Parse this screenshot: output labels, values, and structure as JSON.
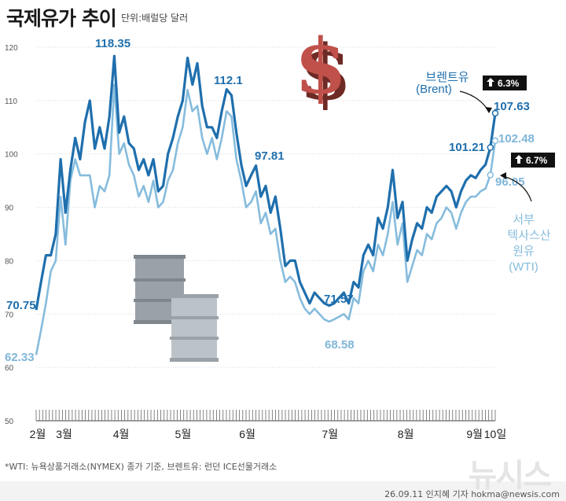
{
  "header": {
    "title": "국제유가 추이",
    "unit": "단위:배럴당 달러"
  },
  "footer": {
    "note": "*WTI: 뉴욕상품거래소(NYMEX) 종가 기준, 브렌트유: 런던 ICE선물거래소",
    "credit": "26.09.11 인지혜 기자 hokma@newsis.com",
    "watermark": "뉴시스"
  },
  "legend": {
    "brent_name": "브렌트유",
    "brent_sub": "(Brent)",
    "wti_name_1": "서부",
    "wti_name_2": "텍사스산",
    "wti_name_3": "원유",
    "wti_sub": "(WTI)",
    "brent_change": "6.3%",
    "wti_change": "6.7%"
  },
  "colors": {
    "brent": "#1f6fad",
    "wti": "#86bcdd",
    "badge": "#111111",
    "dollar": "#b5483f"
  },
  "icons": [
    "dollar-sign-icon",
    "oil-barrel-icon",
    "up-arrow-icon"
  ],
  "chart_data": {
    "type": "line",
    "title": "국제유가 추이",
    "ylabel": "단위:배럴당 달러",
    "ylim": [
      50,
      120
    ],
    "yticks": [
      "50",
      "60",
      "70",
      "80",
      "90",
      "100",
      "110",
      "120"
    ],
    "x_tick_labels": [
      "2월",
      "3월",
      "4월",
      "5월",
      "6월",
      "7월",
      "8월",
      "9월",
      "10일"
    ],
    "grid": true,
    "series": [
      {
        "name": "브렌트유(Brent)",
        "values": [
          70.75,
          76,
          81,
          81,
          85,
          99,
          89,
          97,
          103,
          99,
          106,
          110,
          101,
          105,
          101,
          107,
          118.35,
          104,
          107,
          102,
          101,
          97,
          99,
          96,
          99,
          93,
          94,
          100,
          103,
          107,
          110,
          118,
          113,
          117,
          109,
          105,
          105,
          103,
          108,
          112.1,
          111,
          104,
          98,
          94,
          96,
          97.81,
          92,
          94,
          89,
          92,
          86,
          79,
          80,
          80,
          76,
          74,
          72,
          74,
          73,
          72,
          71.57,
          72,
          73,
          74,
          72,
          76,
          75,
          81,
          83,
          81,
          88,
          86,
          90,
          97,
          88,
          91,
          80,
          84,
          87,
          86,
          90,
          89,
          92,
          93,
          94,
          93,
          90,
          93,
          95,
          96,
          95.5,
          97,
          98,
          101.21,
          107.63
        ]
      },
      {
        "name": "서부텍사스산원유(WTI)",
        "values": [
          62.33,
          67,
          72,
          78,
          80,
          92,
          83,
          95,
          99,
          96,
          96,
          96,
          90,
          94,
          93,
          96,
          113,
          100,
          102,
          98,
          96,
          92,
          94,
          91,
          95,
          90,
          91,
          95,
          97,
          102,
          105,
          112,
          108,
          109,
          103,
          100,
          103,
          99,
          103,
          108,
          107,
          99,
          95,
          90,
          91,
          93,
          87,
          89,
          85,
          86,
          80,
          76,
          77,
          76,
          73,
          71,
          70,
          71,
          70,
          69,
          68.58,
          69,
          69.5,
          70,
          69,
          73,
          72,
          78,
          80,
          78,
          83,
          81,
          85,
          91,
          83,
          87,
          76,
          79,
          82,
          81,
          85,
          84,
          87,
          88,
          90,
          89,
          86,
          89,
          91,
          92,
          92,
          93,
          93.5,
          96.05,
          102.48
        ]
      }
    ],
    "annotations": [
      "70.75",
      "62.33",
      "118.35",
      "112.1",
      "97.81",
      "71.57",
      "68.58",
      "101.21",
      "107.63",
      "102.48",
      "96.05"
    ]
  }
}
